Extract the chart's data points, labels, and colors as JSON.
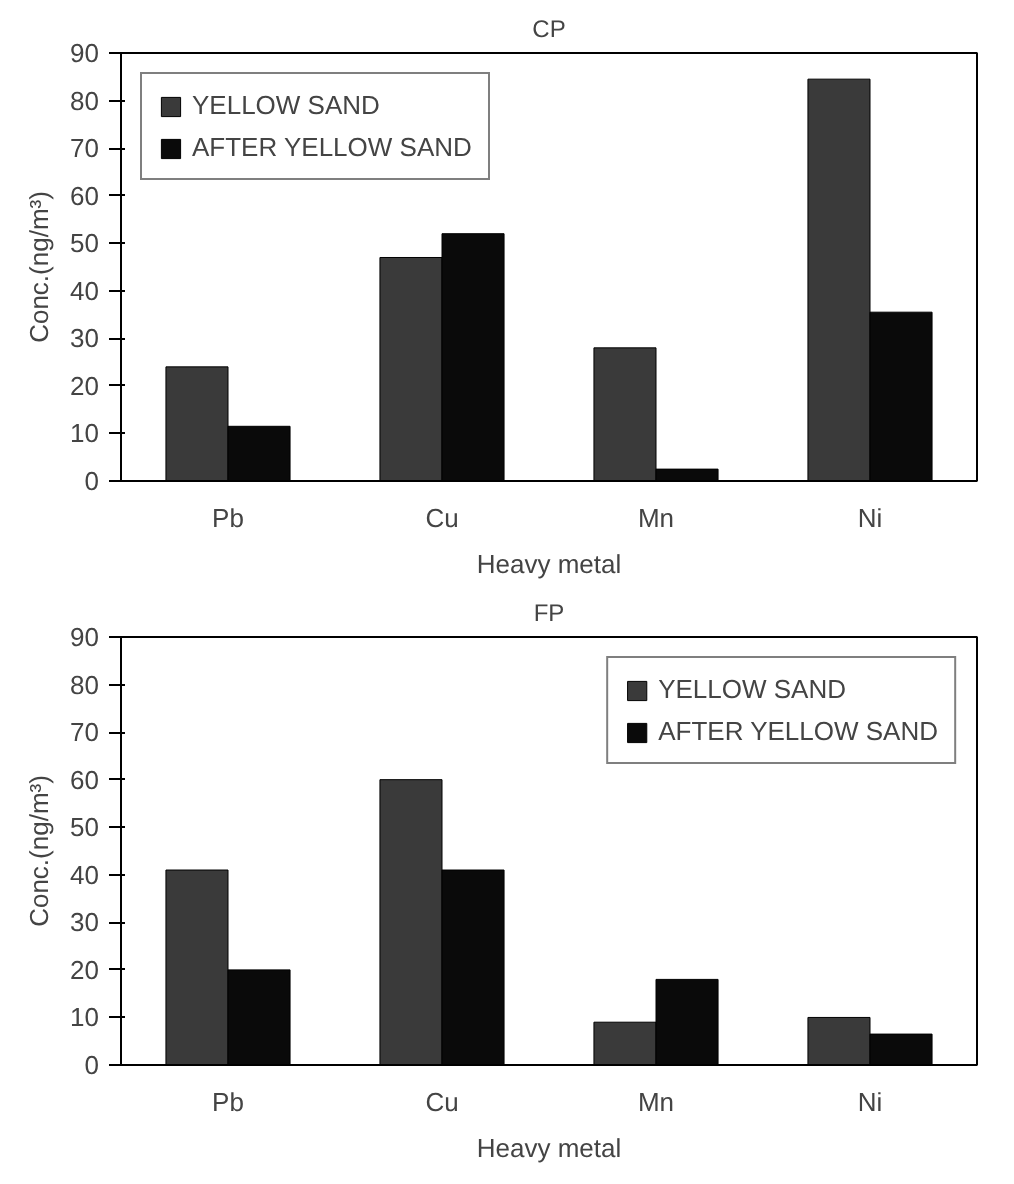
{
  "chart_data": [
    {
      "type": "bar",
      "title": "CP",
      "xlabel": "Heavy metal",
      "ylabel": "Conc.(ng/m³)",
      "categories": [
        "Pb",
        "Cu",
        "Mn",
        "Ni"
      ],
      "ylim": [
        0,
        90
      ],
      "yticks": [
        0,
        10,
        20,
        30,
        40,
        50,
        60,
        70,
        80,
        90
      ],
      "grid": false,
      "legend": "top left",
      "series": [
        {
          "name": "YELLOW SAND",
          "color": "#3a3a3a",
          "values": [
            24,
            47,
            28,
            84.5
          ]
        },
        {
          "name": "AFTER YELLOW SAND",
          "color": "#0a0a0a",
          "values": [
            11.5,
            52,
            2.5,
            35.5
          ]
        }
      ]
    },
    {
      "type": "bar",
      "title": "FP",
      "xlabel": "Heavy metal",
      "ylabel": "Conc.(ng/m³)",
      "categories": [
        "Pb",
        "Cu",
        "Mn",
        "Ni"
      ],
      "ylim": [
        0,
        90
      ],
      "yticks": [
        0,
        10,
        20,
        30,
        40,
        50,
        60,
        70,
        80,
        90
      ],
      "grid": false,
      "legend": "top right",
      "series": [
        {
          "name": "YELLOW SAND",
          "color": "#3a3a3a",
          "values": [
            41,
            60,
            9,
            10
          ]
        },
        {
          "name": "AFTER YELLOW SAND",
          "color": "#0a0a0a",
          "values": [
            20,
            41,
            18,
            6.5
          ]
        }
      ]
    }
  ]
}
